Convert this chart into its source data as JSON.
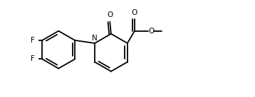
{
  "background_color": "#ffffff",
  "line_color": "#000000",
  "line_width": 1.3,
  "font_size": 7.5,
  "figsize": [
    3.58,
    1.37
  ],
  "dpi": 100,
  "xlim": [
    0.0,
    10.5
  ],
  "ylim": [
    0.5,
    4.2
  ]
}
